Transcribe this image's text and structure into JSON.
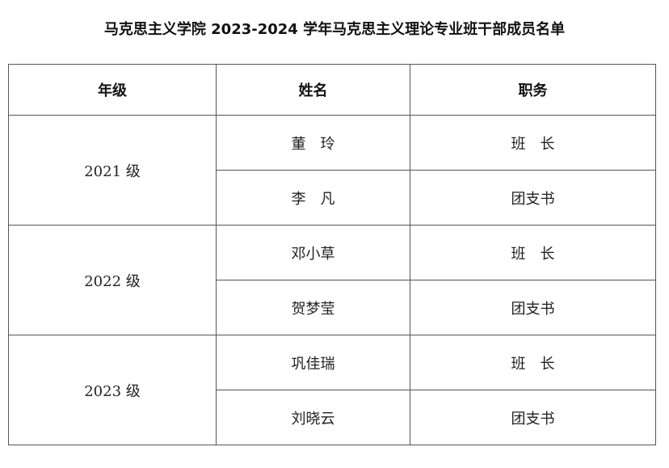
{
  "title": "马克思主义学院 2023-2024 学年马克思主义理论专业班干部成员名单",
  "headers": [
    "年级",
    "姓名",
    "职务"
  ],
  "groups": [
    {
      "grade": "2021 级",
      "members": [
        {
          "name": "董　玲",
          "role": "班　长"
        },
        {
          "name": "李　凡",
          "role": "团支书"
        }
      ]
    },
    {
      "grade": "2022 级",
      "members": [
        {
          "name": "邓小草",
          "role": "班　长"
        },
        {
          "name": "贺梦莹",
          "role": "团支书"
        }
      ]
    },
    {
      "grade": "2023 级",
      "members": [
        {
          "name": "巩佳瑞",
          "role": "班　长"
        },
        {
          "name": "刘晓云",
          "role": "团支书"
        }
      ]
    }
  ]
}
